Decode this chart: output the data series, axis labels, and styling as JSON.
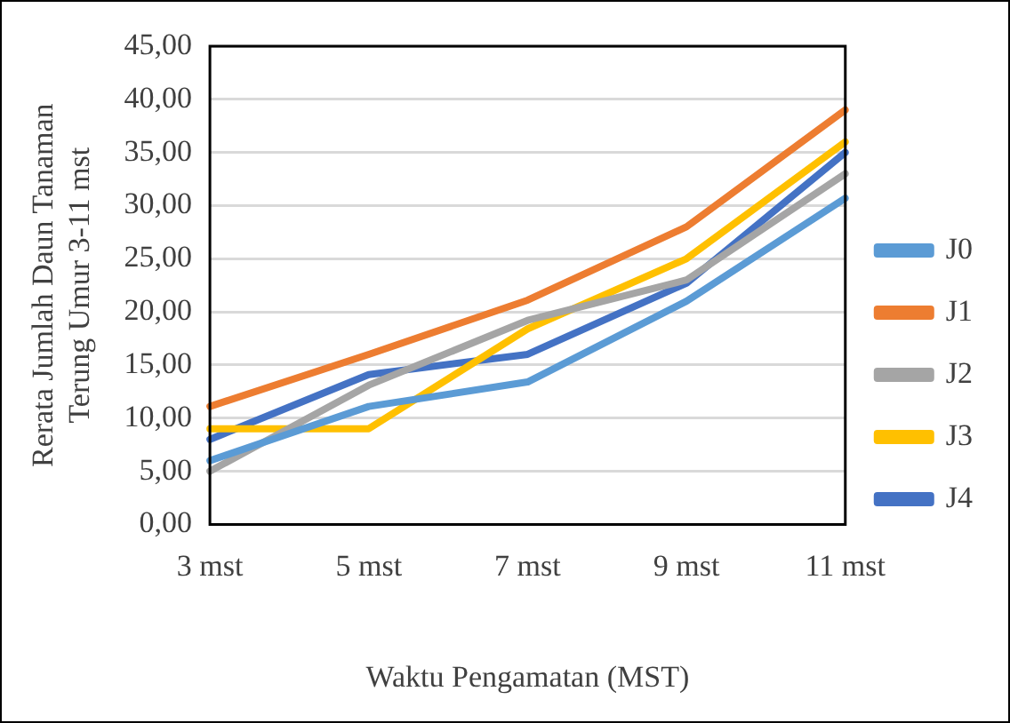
{
  "chart_data": {
    "type": "line",
    "xlabel": "Waktu Pengamatan (MST)",
    "ylabel": "Rerata Jumlah Daun Tanaman Terung Umur 3-11 mst",
    "categories": [
      "3 mst",
      "5 mst",
      "7 mst",
      "9 mst",
      "11 mst"
    ],
    "series": [
      {
        "name": "J0",
        "color": "#5b9bd5",
        "values": [
          6.0,
          11.1,
          13.4,
          21.0,
          30.7
        ]
      },
      {
        "name": "J1",
        "color": "#ed7d31",
        "values": [
          11.1,
          16.0,
          21.1,
          28.0,
          39.0
        ]
      },
      {
        "name": "J2",
        "color": "#a5a5a5",
        "values": [
          5.0,
          13.1,
          19.2,
          23.0,
          33.0
        ]
      },
      {
        "name": "J3",
        "color": "#ffc000",
        "values": [
          9.0,
          9.0,
          18.4,
          25.0,
          36.0
        ]
      },
      {
        "name": "J4",
        "color": "#4472c4",
        "values": [
          8.0,
          14.1,
          16.0,
          22.7,
          35.0
        ]
      }
    ],
    "ylim": [
      0,
      45
    ],
    "yticks": [
      {
        "value": 0,
        "label": "0,00"
      },
      {
        "value": 5,
        "label": "5,00"
      },
      {
        "value": 10,
        "label": "10,00"
      },
      {
        "value": 15,
        "label": "15,00"
      },
      {
        "value": 20,
        "label": "20,00"
      },
      {
        "value": 25,
        "label": "25,00"
      },
      {
        "value": 30,
        "label": "30,00"
      },
      {
        "value": 35,
        "label": "35,00"
      },
      {
        "value": 40,
        "label": "40,00"
      },
      {
        "value": 45,
        "label": "45,00"
      }
    ],
    "grid": "y",
    "legend": "right",
    "marker": "none",
    "line_style": "solid"
  }
}
